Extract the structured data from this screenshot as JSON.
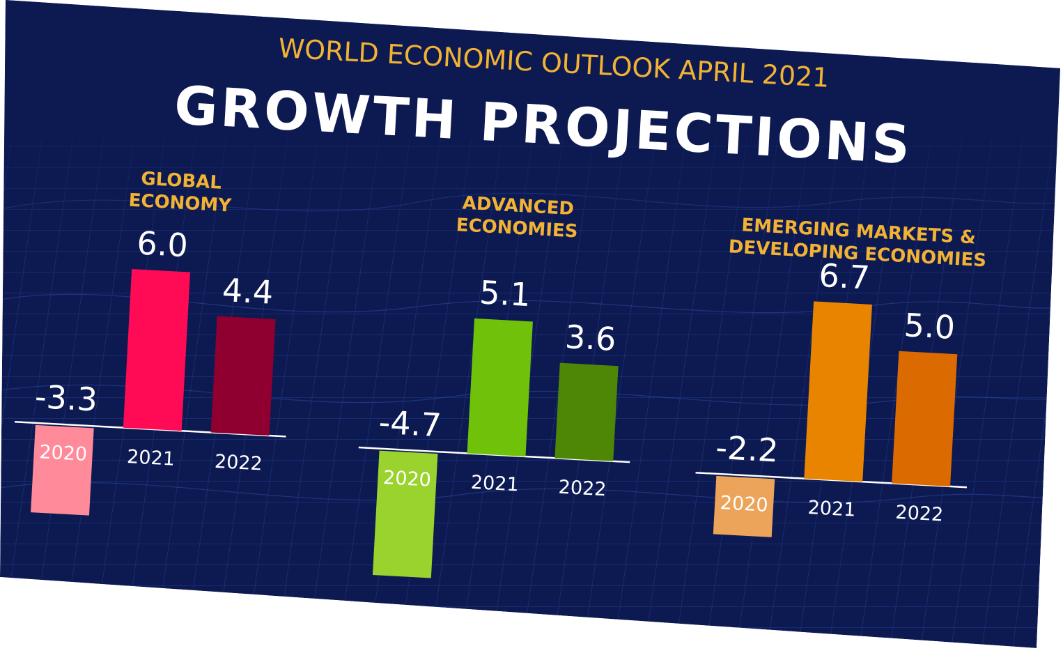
{
  "header": {
    "supertitle": "WORLD ECONOMIC OUTLOOK APRIL 2021",
    "title": "GROWTH PROJECTIONS"
  },
  "colors": {
    "background": "#0d1a52",
    "grid": "#2a4aa8",
    "accent": "#f2b233",
    "text": "#ffffff"
  },
  "chart_data": [
    {
      "type": "bar",
      "title_lines": [
        "GLOBAL",
        "ECONOMY"
      ],
      "categories": [
        "2020",
        "2021",
        "2022"
      ],
      "values": [
        -3.3,
        6.0,
        4.4
      ],
      "value_labels": [
        "-3.3",
        "6.0",
        "4.4"
      ],
      "bar_colors": [
        "#ff8a9a",
        "#ff0a55",
        "#8f0030"
      ]
    },
    {
      "type": "bar",
      "title_lines": [
        "ADVANCED",
        "ECONOMIES"
      ],
      "categories": [
        "2020",
        "2021",
        "2022"
      ],
      "values": [
        -4.7,
        5.1,
        3.6
      ],
      "value_labels": [
        "-4.7",
        "5.1",
        "3.6"
      ],
      "bar_colors": [
        "#9ad22e",
        "#6fc10a",
        "#4e8606"
      ]
    },
    {
      "type": "bar",
      "title_lines": [
        "EMERGING MARKETS &",
        "DEVELOPING ECONOMIES"
      ],
      "categories": [
        "2020",
        "2021",
        "2022"
      ],
      "values": [
        -2.2,
        6.7,
        5.0
      ],
      "value_labels": [
        "-2.2",
        "6.7",
        "5.0"
      ],
      "bar_colors": [
        "#eba45a",
        "#e88400",
        "#db6a00"
      ]
    }
  ]
}
